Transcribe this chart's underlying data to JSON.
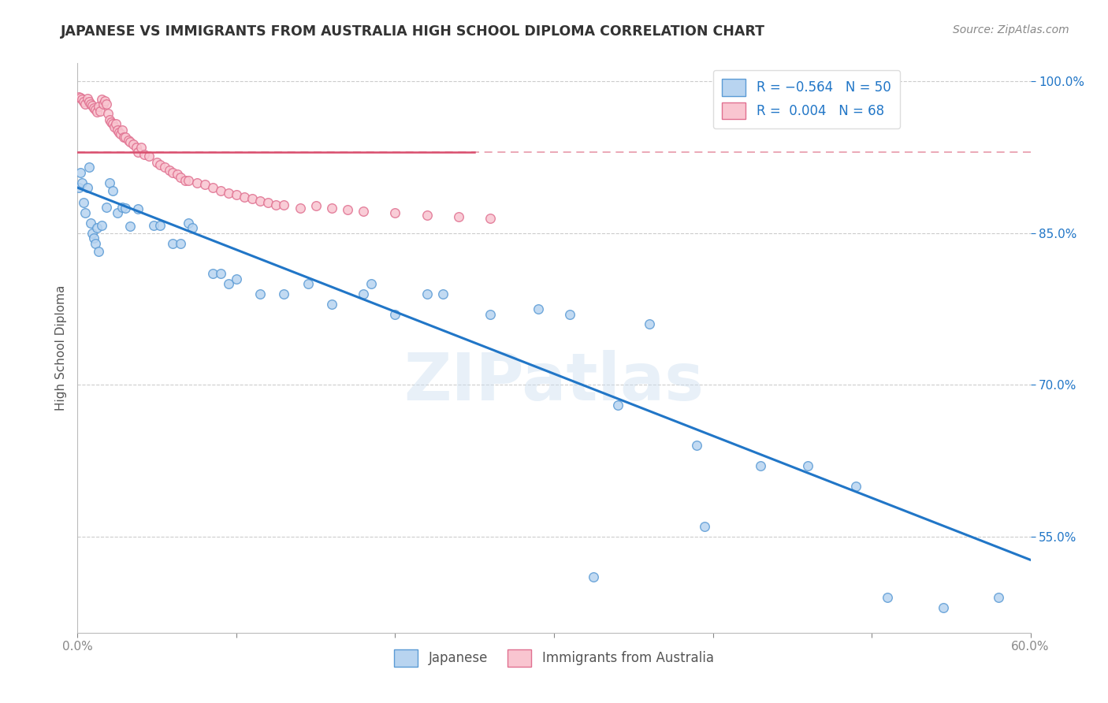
{
  "title": "JAPANESE VS IMMIGRANTS FROM AUSTRALIA HIGH SCHOOL DIPLOMA CORRELATION CHART",
  "source": "Source: ZipAtlas.com",
  "ylabel": "High School Diploma",
  "watermark": "ZIPatlas",
  "xlim": [
    0.0,
    0.6
  ],
  "ylim": [
    0.455,
    1.018
  ],
  "x_ticks": [
    0.0,
    0.1,
    0.2,
    0.3,
    0.4,
    0.5,
    0.6
  ],
  "x_tick_labels": [
    "0.0%",
    "",
    "",
    "",
    "",
    "",
    "60.0%"
  ],
  "y_ticks": [
    0.55,
    0.7,
    0.85,
    1.0
  ],
  "y_tick_labels": [
    "55.0%",
    "70.0%",
    "85.0%",
    "100.0%"
  ],
  "japanese_points": [
    [
      0.001,
      0.895
    ],
    [
      0.002,
      0.91
    ],
    [
      0.003,
      0.9
    ],
    [
      0.004,
      0.88
    ],
    [
      0.005,
      0.87
    ],
    [
      0.006,
      0.895
    ],
    [
      0.007,
      0.915
    ],
    [
      0.008,
      0.86
    ],
    [
      0.009,
      0.85
    ],
    [
      0.01,
      0.845
    ],
    [
      0.011,
      0.84
    ],
    [
      0.012,
      0.855
    ],
    [
      0.013,
      0.832
    ],
    [
      0.015,
      0.858
    ],
    [
      0.018,
      0.876
    ],
    [
      0.02,
      0.9
    ],
    [
      0.022,
      0.892
    ],
    [
      0.025,
      0.87
    ],
    [
      0.028,
      0.876
    ],
    [
      0.03,
      0.875
    ],
    [
      0.033,
      0.857
    ],
    [
      0.038,
      0.874
    ],
    [
      0.048,
      0.858
    ],
    [
      0.052,
      0.858
    ],
    [
      0.06,
      0.84
    ],
    [
      0.065,
      0.84
    ],
    [
      0.07,
      0.86
    ],
    [
      0.072,
      0.855
    ],
    [
      0.085,
      0.81
    ],
    [
      0.09,
      0.81
    ],
    [
      0.095,
      0.8
    ],
    [
      0.1,
      0.805
    ],
    [
      0.115,
      0.79
    ],
    [
      0.13,
      0.79
    ],
    [
      0.145,
      0.8
    ],
    [
      0.16,
      0.78
    ],
    [
      0.18,
      0.79
    ],
    [
      0.185,
      0.8
    ],
    [
      0.2,
      0.77
    ],
    [
      0.22,
      0.79
    ],
    [
      0.23,
      0.79
    ],
    [
      0.26,
      0.77
    ],
    [
      0.29,
      0.775
    ],
    [
      0.31,
      0.77
    ],
    [
      0.34,
      0.68
    ],
    [
      0.36,
      0.76
    ],
    [
      0.39,
      0.64
    ],
    [
      0.43,
      0.62
    ],
    [
      0.46,
      0.62
    ],
    [
      0.49,
      0.6
    ],
    [
      0.325,
      0.51
    ],
    [
      0.395,
      0.56
    ],
    [
      0.51,
      0.49
    ],
    [
      0.545,
      0.48
    ],
    [
      0.58,
      0.49
    ]
  ],
  "australia_points": [
    [
      0.001,
      0.985
    ],
    [
      0.002,
      0.984
    ],
    [
      0.003,
      0.982
    ],
    [
      0.004,
      0.98
    ],
    [
      0.005,
      0.978
    ],
    [
      0.006,
      0.983
    ],
    [
      0.007,
      0.98
    ],
    [
      0.008,
      0.978
    ],
    [
      0.009,
      0.976
    ],
    [
      0.01,
      0.974
    ],
    [
      0.011,
      0.972
    ],
    [
      0.012,
      0.97
    ],
    [
      0.013,
      0.975
    ],
    [
      0.014,
      0.971
    ],
    [
      0.015,
      0.982
    ],
    [
      0.016,
      0.978
    ],
    [
      0.017,
      0.981
    ],
    [
      0.018,
      0.978
    ],
    [
      0.019,
      0.968
    ],
    [
      0.02,
      0.962
    ],
    [
      0.021,
      0.96
    ],
    [
      0.022,
      0.958
    ],
    [
      0.023,
      0.955
    ],
    [
      0.024,
      0.958
    ],
    [
      0.025,
      0.952
    ],
    [
      0.026,
      0.95
    ],
    [
      0.027,
      0.948
    ],
    [
      0.028,
      0.952
    ],
    [
      0.029,
      0.945
    ],
    [
      0.03,
      0.945
    ],
    [
      0.032,
      0.942
    ],
    [
      0.033,
      0.94
    ],
    [
      0.035,
      0.938
    ],
    [
      0.037,
      0.935
    ],
    [
      0.038,
      0.93
    ],
    [
      0.04,
      0.935
    ],
    [
      0.042,
      0.928
    ],
    [
      0.045,
      0.926
    ],
    [
      0.05,
      0.92
    ],
    [
      0.052,
      0.918
    ],
    [
      0.055,
      0.915
    ],
    [
      0.058,
      0.912
    ],
    [
      0.06,
      0.91
    ],
    [
      0.063,
      0.908
    ],
    [
      0.065,
      0.905
    ],
    [
      0.068,
      0.902
    ],
    [
      0.07,
      0.902
    ],
    [
      0.075,
      0.9
    ],
    [
      0.08,
      0.898
    ],
    [
      0.085,
      0.895
    ],
    [
      0.09,
      0.892
    ],
    [
      0.095,
      0.89
    ],
    [
      0.1,
      0.888
    ],
    [
      0.105,
      0.886
    ],
    [
      0.11,
      0.884
    ],
    [
      0.115,
      0.882
    ],
    [
      0.12,
      0.88
    ],
    [
      0.125,
      0.878
    ],
    [
      0.13,
      0.878
    ],
    [
      0.14,
      0.875
    ],
    [
      0.15,
      0.877
    ],
    [
      0.16,
      0.875
    ],
    [
      0.17,
      0.873
    ],
    [
      0.18,
      0.872
    ],
    [
      0.2,
      0.87
    ],
    [
      0.22,
      0.868
    ],
    [
      0.24,
      0.866
    ],
    [
      0.26,
      0.865
    ]
  ],
  "australia_solid_trend_x": [
    0.0,
    0.25
  ],
  "australia_solid_trend_y": [
    0.93,
    0.93
  ],
  "australia_dashed_trend_x": [
    0.0,
    0.6
  ],
  "australia_dashed_trend_y": [
    0.93,
    0.93
  ],
  "japanese_trend_x": [
    0.0,
    0.6
  ],
  "japanese_trend_y": [
    0.895,
    0.527
  ],
  "bg_color": "#ffffff",
  "grid_color": "#cccccc",
  "dot_size": 70,
  "trend_japan_color": "#2176c7",
  "trend_aus_solid_color": "#d94f6e",
  "trend_aus_dashed_color": "#e89aaa"
}
